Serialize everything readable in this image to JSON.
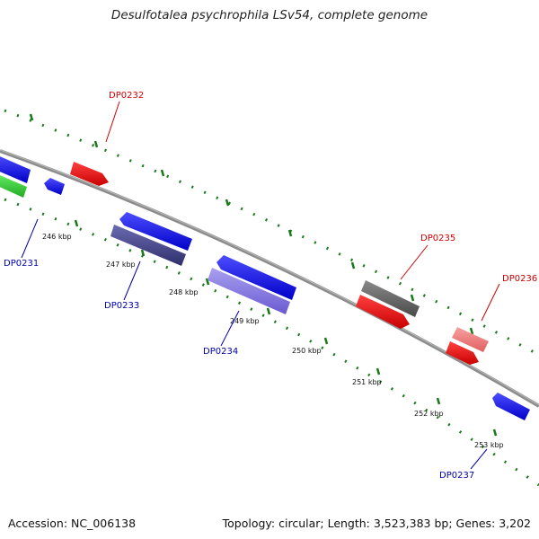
{
  "title": "Desulfotalea psychrophila LSv54, complete genome",
  "footer": {
    "accession": "Accession: NC_006138",
    "topology": "Topology: circular; Length: 3,523,383 bp; Genes: 3,202"
  },
  "colors": {
    "backbone": "#8c8c8c",
    "ticks": "#1a7a1a",
    "forward_label": "#cc0000",
    "reverse_label": "#0000aa"
  },
  "ticks": [
    {
      "label": "246 kbp"
    },
    {
      "label": "247 kbp"
    },
    {
      "label": "248 kbp"
    },
    {
      "label": "249 kbp"
    },
    {
      "label": "250 kbp"
    },
    {
      "label": "251 kbp"
    },
    {
      "label": "252 kbp"
    },
    {
      "label": "253 kbp"
    }
  ],
  "genes": [
    {
      "label": "DP0232",
      "strand": "forward"
    },
    {
      "label": "DP0235",
      "strand": "forward"
    },
    {
      "label": "DP0236",
      "strand": "forward"
    },
    {
      "label": "DP0231",
      "strand": "reverse"
    },
    {
      "label": "DP0233",
      "strand": "reverse"
    },
    {
      "label": "DP0234",
      "strand": "reverse"
    },
    {
      "label": "DP0237",
      "strand": "reverse"
    }
  ]
}
